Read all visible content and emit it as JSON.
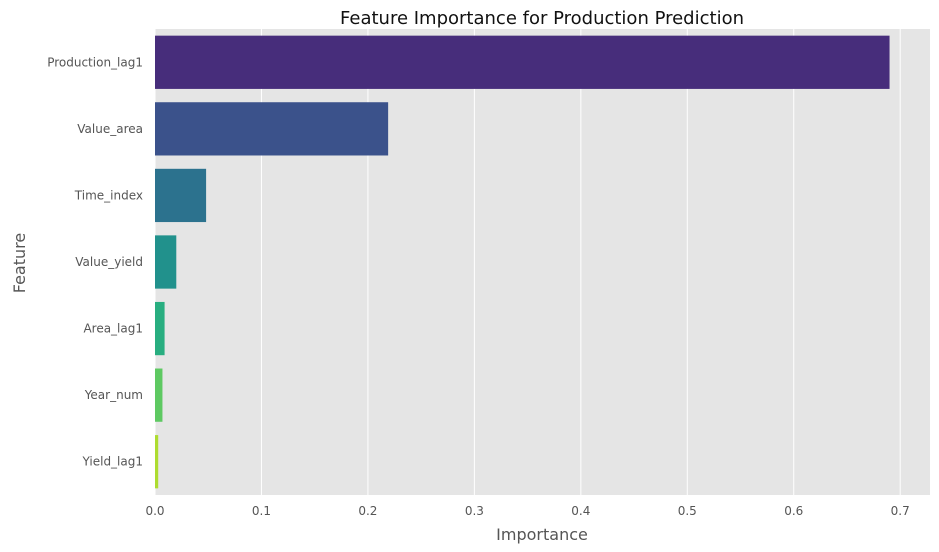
{
  "chart_data": {
    "type": "bar",
    "orientation": "horizontal",
    "title": "Feature Importance for Production Prediction",
    "xlabel": "Importance",
    "ylabel": "Feature",
    "xlim": [
      0,
      0.728
    ],
    "xticks": [
      0.0,
      0.1,
      0.2,
      0.3,
      0.4,
      0.5,
      0.6,
      0.7
    ],
    "xtick_labels": [
      "0.0",
      "0.1",
      "0.2",
      "0.3",
      "0.4",
      "0.5",
      "0.6",
      "0.7"
    ],
    "categories": [
      "Production_lag1",
      "Value_area",
      "Time_index",
      "Value_yield",
      "Area_lag1",
      "Year_num",
      "Yield_lag1"
    ],
    "values": [
      0.69,
      0.219,
      0.048,
      0.02,
      0.009,
      0.007,
      0.003
    ],
    "colors": [
      "#472d7b",
      "#3b528b",
      "#2c728e",
      "#21918c",
      "#28ae80",
      "#5ec962",
      "#addc30"
    ],
    "grid": true,
    "plot_background": "#e5e5e5",
    "grid_color": "#ffffff"
  }
}
